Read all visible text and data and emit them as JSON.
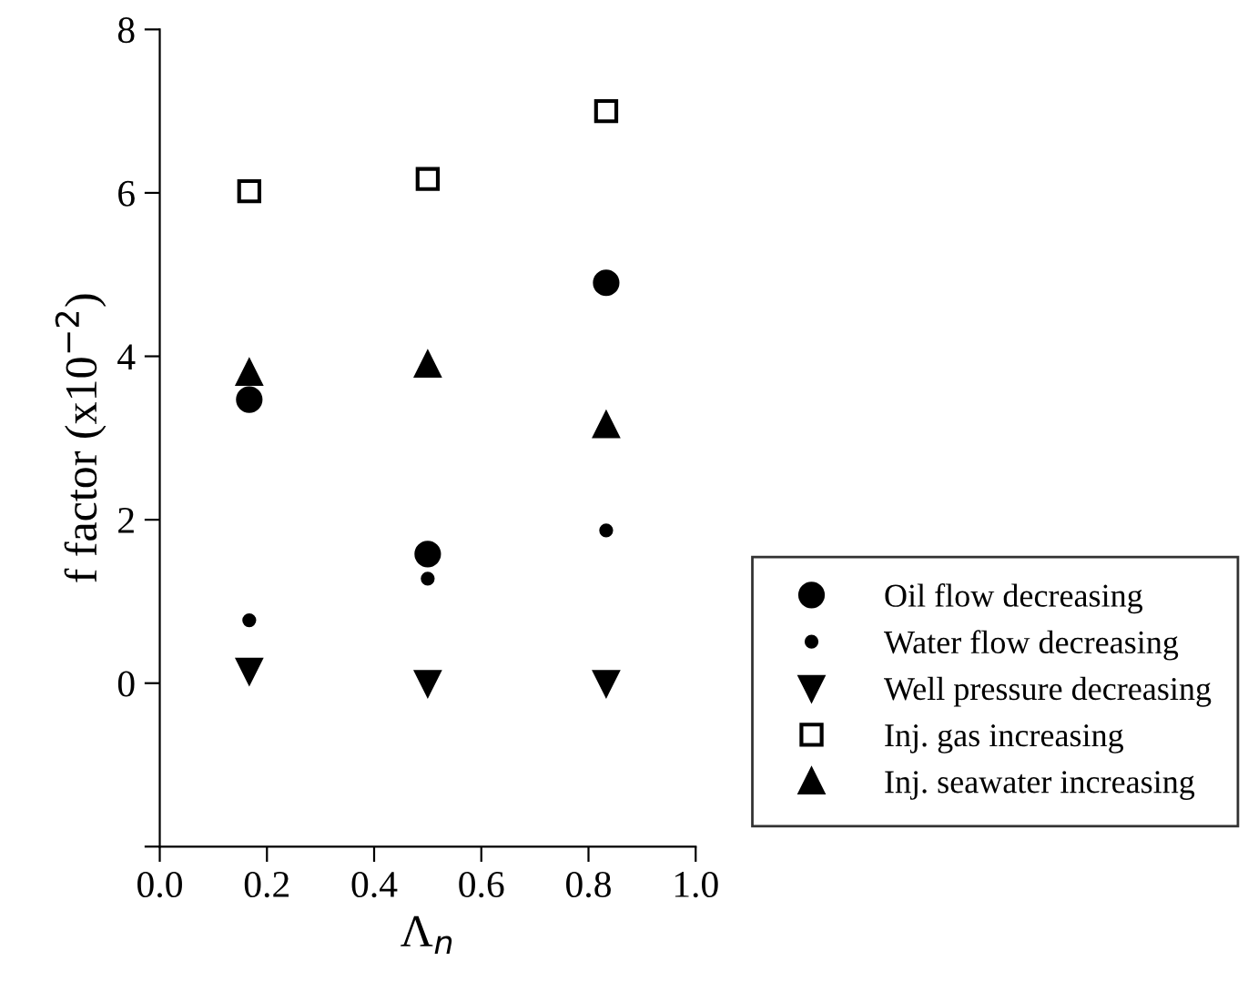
{
  "chart_data": {
    "type": "scatter",
    "xlabel": "Λ$_{n}$",
    "ylabel": "f factor (x10$^{−2}$)",
    "x": [
      0.167,
      0.5,
      0.833
    ],
    "xlim": [
      0,
      1
    ],
    "xticks": [
      {
        "value": 0,
        "label": "0.0"
      },
      {
        "value": 0.2,
        "label": "0.2"
      },
      {
        "value": 0.4,
        "label": "0.4"
      },
      {
        "value": 0.6,
        "label": "0.6"
      },
      {
        "value": 0.8,
        "label": "0.8"
      },
      {
        "value": 1,
        "label": "1.0"
      }
    ],
    "ylim": [
      -2,
      8
    ],
    "yticks": [
      {
        "value": -2,
        "label": null
      },
      0,
      2,
      4,
      6,
      8
    ],
    "grid": false,
    "legend": "right",
    "series": [
      {
        "name": "Oil flow decreasing",
        "color": "#000000",
        "marker": "circle",
        "values": [
          3.47,
          1.58,
          4.9
        ]
      },
      {
        "name": "Water flow decreasing",
        "color": "#000000",
        "marker": "point",
        "values": [
          0.77,
          1.28,
          1.87
        ]
      },
      {
        "name": "Well pressure decreasing",
        "color": "#000000",
        "marker": "triangle-down",
        "values": [
          0.15,
          0,
          0
        ]
      },
      {
        "name": "Inj. gas increasing",
        "color": "#000000",
        "marker": "square-open",
        "values": [
          6.02,
          6.17,
          7.0
        ]
      },
      {
        "name": "Inj. seawater increasing",
        "color": "#000000",
        "marker": "triangle",
        "values": [
          3.8,
          3.9,
          3.16
        ]
      }
    ]
  }
}
